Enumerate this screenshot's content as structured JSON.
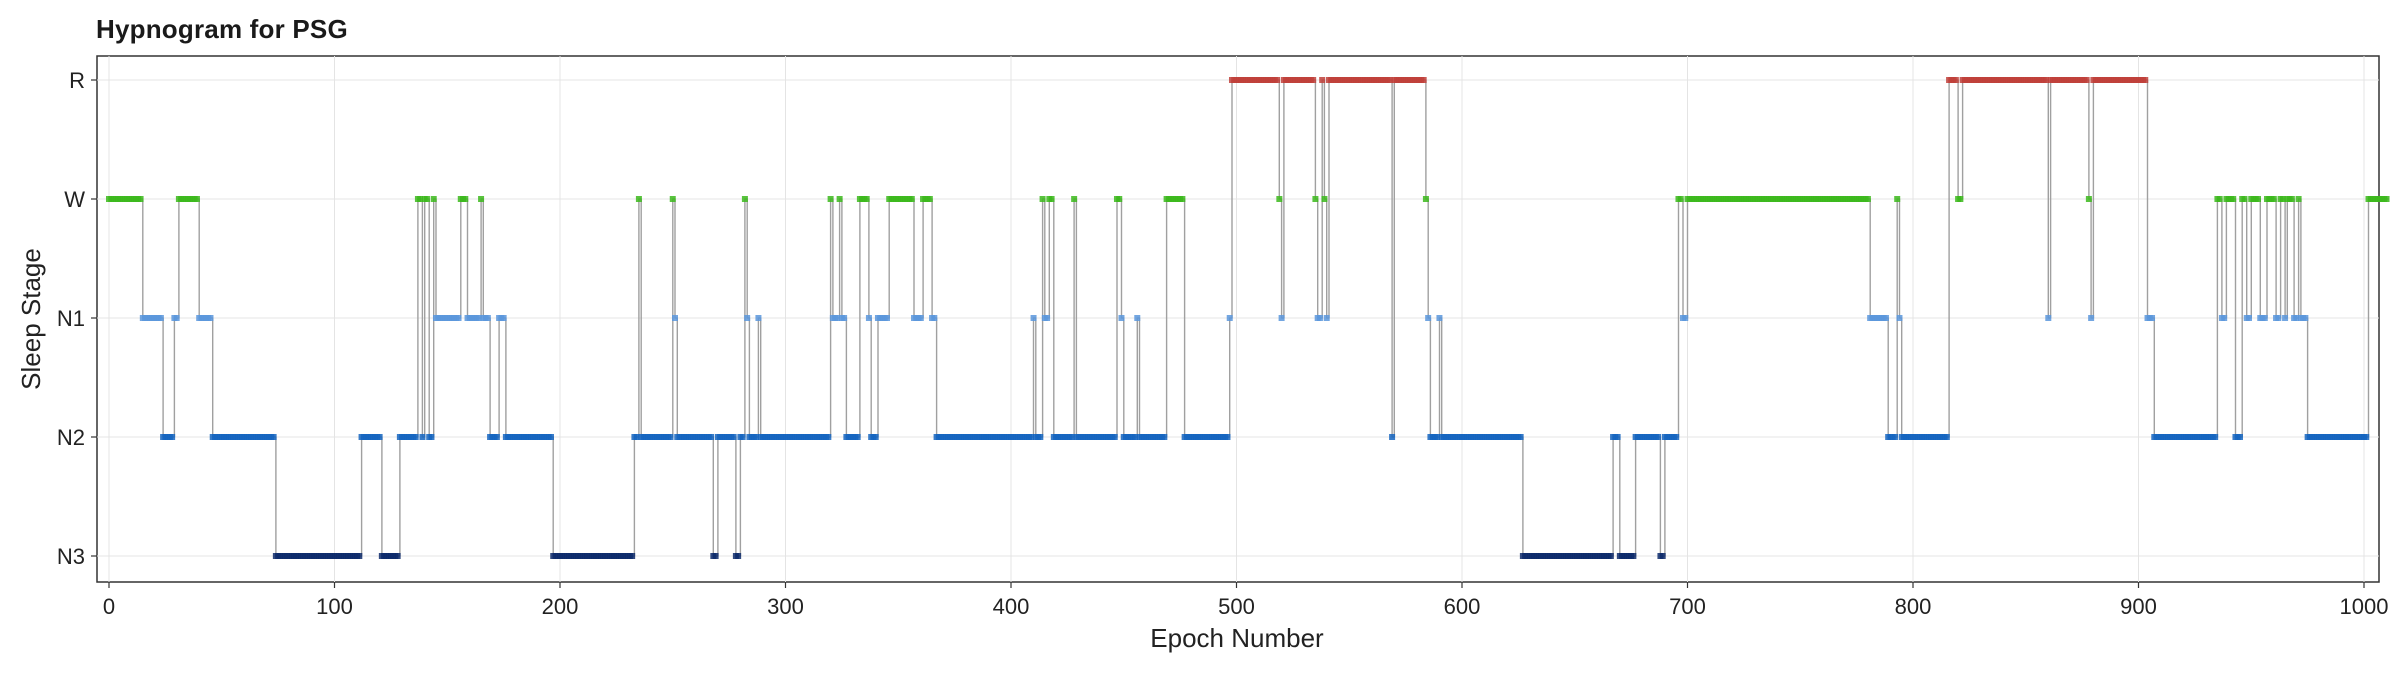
{
  "chart_data": {
    "type": "line",
    "title": "Hypnogram for PSG",
    "xlabel": "Epoch Number",
    "ylabel": "Sleep Stage",
    "xlim": [
      -3,
      1013
    ],
    "xticks": [
      0,
      100,
      200,
      300,
      400,
      500,
      600,
      700,
      800,
      900,
      1000
    ],
    "y_categories": [
      "N3",
      "N2",
      "N1",
      "W",
      "R"
    ],
    "grid": true,
    "stage_colors": {
      "W": "#3cb81c",
      "N1": "#5a96dc",
      "N2": "#1565c0",
      "N3": "#0d2a6b",
      "R": "#c0403a"
    },
    "line_color": "#a0a0a0",
    "segments": [
      {
        "stage": "W",
        "start": 0,
        "end": 15
      },
      {
        "stage": "N1",
        "start": 15,
        "end": 24
      },
      {
        "stage": "N2",
        "start": 24,
        "end": 29
      },
      {
        "stage": "N1",
        "start": 29,
        "end": 31
      },
      {
        "stage": "W",
        "start": 31,
        "end": 40
      },
      {
        "stage": "N1",
        "start": 40,
        "end": 46
      },
      {
        "stage": "N2",
        "start": 46,
        "end": 74
      },
      {
        "stage": "N3",
        "start": 74,
        "end": 112
      },
      {
        "stage": "N2",
        "start": 112,
        "end": 121
      },
      {
        "stage": "N3",
        "start": 121,
        "end": 129
      },
      {
        "stage": "N2",
        "start": 129,
        "end": 137
      },
      {
        "stage": "W",
        "start": 137,
        "end": 139
      },
      {
        "stage": "N2",
        "start": 139,
        "end": 140
      },
      {
        "stage": "W",
        "start": 140,
        "end": 142
      },
      {
        "stage": "N2",
        "start": 142,
        "end": 144
      },
      {
        "stage": "W",
        "start": 144,
        "end": 145
      },
      {
        "stage": "N1",
        "start": 145,
        "end": 156
      },
      {
        "stage": "W",
        "start": 156,
        "end": 159
      },
      {
        "stage": "N1",
        "start": 159,
        "end": 165
      },
      {
        "stage": "W",
        "start": 165,
        "end": 166
      },
      {
        "stage": "N1",
        "start": 166,
        "end": 169
      },
      {
        "stage": "N2",
        "start": 169,
        "end": 173
      },
      {
        "stage": "N1",
        "start": 173,
        "end": 176
      },
      {
        "stage": "N2",
        "start": 176,
        "end": 197
      },
      {
        "stage": "N3",
        "start": 197,
        "end": 233
      },
      {
        "stage": "N2",
        "start": 233,
        "end": 235
      },
      {
        "stage": "W",
        "start": 235,
        "end": 236
      },
      {
        "stage": "N2",
        "start": 236,
        "end": 250
      },
      {
        "stage": "W",
        "start": 250,
        "end": 251
      },
      {
        "stage": "N1",
        "start": 251,
        "end": 252
      },
      {
        "stage": "N2",
        "start": 252,
        "end": 268
      },
      {
        "stage": "N3",
        "start": 268,
        "end": 270
      },
      {
        "stage": "N2",
        "start": 270,
        "end": 278
      },
      {
        "stage": "N3",
        "start": 278,
        "end": 280
      },
      {
        "stage": "N2",
        "start": 280,
        "end": 282
      },
      {
        "stage": "W",
        "start": 282,
        "end": 283
      },
      {
        "stage": "N1",
        "start": 283,
        "end": 284
      },
      {
        "stage": "N2",
        "start": 284,
        "end": 288
      },
      {
        "stage": "N1",
        "start": 288,
        "end": 289
      },
      {
        "stage": "N2",
        "start": 289,
        "end": 320
      },
      {
        "stage": "W",
        "start": 320,
        "end": 321
      },
      {
        "stage": "N1",
        "start": 321,
        "end": 324
      },
      {
        "stage": "W",
        "start": 324,
        "end": 325
      },
      {
        "stage": "N1",
        "start": 325,
        "end": 327
      },
      {
        "stage": "N2",
        "start": 327,
        "end": 333
      },
      {
        "stage": "W",
        "start": 333,
        "end": 337
      },
      {
        "stage": "N1",
        "start": 337,
        "end": 338
      },
      {
        "stage": "N2",
        "start": 338,
        "end": 341
      },
      {
        "stage": "N1",
        "start": 341,
        "end": 346
      },
      {
        "stage": "W",
        "start": 346,
        "end": 357
      },
      {
        "stage": "N1",
        "start": 357,
        "end": 361
      },
      {
        "stage": "W",
        "start": 361,
        "end": 365
      },
      {
        "stage": "N1",
        "start": 365,
        "end": 367
      },
      {
        "stage": "N2",
        "start": 367,
        "end": 410
      },
      {
        "stage": "N1",
        "start": 410,
        "end": 411
      },
      {
        "stage": "N2",
        "start": 411,
        "end": 414
      },
      {
        "stage": "W",
        "start": 414,
        "end": 415
      },
      {
        "stage": "N1",
        "start": 415,
        "end": 417
      },
      {
        "stage": "W",
        "start": 417,
        "end": 419
      },
      {
        "stage": "N2",
        "start": 419,
        "end": 428
      },
      {
        "stage": "W",
        "start": 428,
        "end": 429
      },
      {
        "stage": "N2",
        "start": 429,
        "end": 447
      },
      {
        "stage": "W",
        "start": 447,
        "end": 449
      },
      {
        "stage": "N1",
        "start": 449,
        "end": 450
      },
      {
        "stage": "N2",
        "start": 450,
        "end": 456
      },
      {
        "stage": "N1",
        "start": 456,
        "end": 457
      },
      {
        "stage": "N2",
        "start": 457,
        "end": 469
      },
      {
        "stage": "W",
        "start": 469,
        "end": 477
      },
      {
        "stage": "N2",
        "start": 477,
        "end": 497
      },
      {
        "stage": "N1",
        "start": 497,
        "end": 498
      },
      {
        "stage": "R",
        "start": 498,
        "end": 519
      },
      {
        "stage": "W",
        "start": 519,
        "end": 520
      },
      {
        "stage": "N1",
        "start": 520,
        "end": 521
      },
      {
        "stage": "R",
        "start": 521,
        "end": 535
      },
      {
        "stage": "W",
        "start": 535,
        "end": 536
      },
      {
        "stage": "N1",
        "start": 536,
        "end": 538
      },
      {
        "stage": "R",
        "start": 538,
        "end": 539
      },
      {
        "stage": "W",
        "start": 539,
        "end": 540
      },
      {
        "stage": "N1",
        "start": 540,
        "end": 541
      },
      {
        "stage": "R",
        "start": 541,
        "end": 569
      },
      {
        "stage": "N2",
        "start": 569,
        "end": 570
      },
      {
        "stage": "R",
        "start": 570,
        "end": 584
      },
      {
        "stage": "W",
        "start": 584,
        "end": 585
      },
      {
        "stage": "N1",
        "start": 585,
        "end": 586
      },
      {
        "stage": "N2",
        "start": 586,
        "end": 590
      },
      {
        "stage": "N1",
        "start": 590,
        "end": 591
      },
      {
        "stage": "N2",
        "start": 591,
        "end": 627
      },
      {
        "stage": "N3",
        "start": 627,
        "end": 667
      },
      {
        "stage": "N2",
        "start": 667,
        "end": 670
      },
      {
        "stage": "N3",
        "start": 670,
        "end": 677
      },
      {
        "stage": "N2",
        "start": 677,
        "end": 688
      },
      {
        "stage": "N3",
        "start": 688,
        "end": 690
      },
      {
        "stage": "N2",
        "start": 690,
        "end": 696
      },
      {
        "stage": "W",
        "start": 696,
        "end": 698
      },
      {
        "stage": "N1",
        "start": 698,
        "end": 700
      },
      {
        "stage": "W",
        "start": 700,
        "end": 781
      },
      {
        "stage": "N1",
        "start": 781,
        "end": 789
      },
      {
        "stage": "N2",
        "start": 789,
        "end": 793
      },
      {
        "stage": "W",
        "start": 793,
        "end": 794
      },
      {
        "stage": "N1",
        "start": 794,
        "end": 795
      },
      {
        "stage": "N2",
        "start": 795,
        "end": 816
      },
      {
        "stage": "R",
        "start": 816,
        "end": 820
      },
      {
        "stage": "W",
        "start": 820,
        "end": 822
      },
      {
        "stage": "R",
        "start": 822,
        "end": 860
      },
      {
        "stage": "N1",
        "start": 860,
        "end": 861
      },
      {
        "stage": "R",
        "start": 861,
        "end": 878
      },
      {
        "stage": "W",
        "start": 878,
        "end": 879
      },
      {
        "stage": "N1",
        "start": 879,
        "end": 880
      },
      {
        "stage": "R",
        "start": 880,
        "end": 904
      },
      {
        "stage": "N1",
        "start": 904,
        "end": 907
      },
      {
        "stage": "N2",
        "start": 907,
        "end": 935
      },
      {
        "stage": "W",
        "start": 935,
        "end": 937
      },
      {
        "stage": "N1",
        "start": 937,
        "end": 939
      },
      {
        "stage": "W",
        "start": 939,
        "end": 943
      },
      {
        "stage": "N2",
        "start": 943,
        "end": 946
      },
      {
        "stage": "W",
        "start": 946,
        "end": 948
      },
      {
        "stage": "N1",
        "start": 948,
        "end": 950
      },
      {
        "stage": "W",
        "start": 950,
        "end": 954
      },
      {
        "stage": "N1",
        "start": 954,
        "end": 957
      },
      {
        "stage": "W",
        "start": 957,
        "end": 961
      },
      {
        "stage": "N1",
        "start": 961,
        "end": 963
      },
      {
        "stage": "W",
        "start": 963,
        "end": 965
      },
      {
        "stage": "N1",
        "start": 965,
        "end": 966
      },
      {
        "stage": "W",
        "start": 966,
        "end": 969
      },
      {
        "stage": "N1",
        "start": 969,
        "end": 971
      },
      {
        "stage": "W",
        "start": 971,
        "end": 972
      },
      {
        "stage": "N1",
        "start": 972,
        "end": 975
      },
      {
        "stage": "N2",
        "start": 975,
        "end": 1002
      },
      {
        "stage": "W",
        "start": 1002,
        "end": 1011
      }
    ]
  }
}
